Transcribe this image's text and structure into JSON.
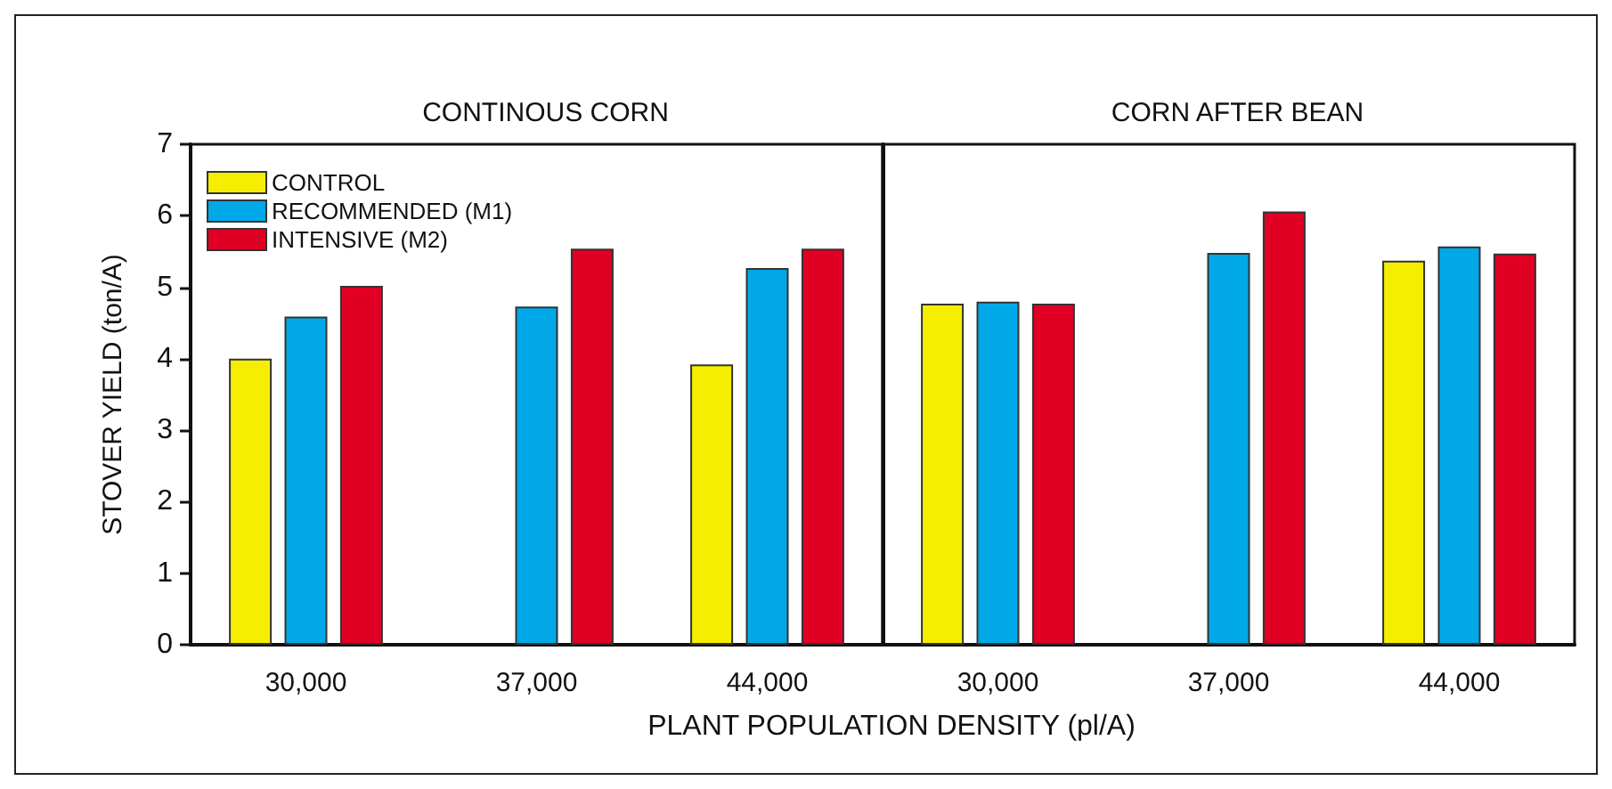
{
  "chart_data": [
    {
      "type": "bar",
      "title": "CONTINOUS CORN",
      "xlabel": "PLANT POPULATION DENSITY (pl/A)",
      "ylabel": "STOVER YIELD (ton/A)",
      "categories": [
        "30,000",
        "37,000",
        "44,000"
      ],
      "series": [
        {
          "name": "CONTROL",
          "color": "#f5ee00",
          "values": [
            4.0,
            null,
            3.92
          ]
        },
        {
          "name": "RECOMMENDED (M1)",
          "color": "#00a8e8",
          "values": [
            4.59,
            4.73,
            5.27
          ]
        },
        {
          "name": "INTENSIVE (M2)",
          "color": "#e00024",
          "values": [
            5.02,
            5.54,
            5.54
          ]
        }
      ],
      "ylim": [
        0,
        7
      ],
      "yticks": [
        0,
        1,
        2,
        3,
        4,
        5,
        6,
        7
      ],
      "grid": false,
      "legend": "top left"
    },
    {
      "type": "bar",
      "title": "CORN AFTER BEAN",
      "categories": [
        "30,000",
        "37,000",
        "44,000"
      ],
      "series": [
        {
          "color": "#f5ee00",
          "values": [
            4.77,
            null,
            5.37
          ]
        },
        {
          "color": "#00a8e8",
          "values": [
            4.8,
            5.48,
            5.57
          ]
        },
        {
          "color": "#e00024",
          "values": [
            4.77,
            6.06,
            5.47
          ]
        }
      ],
      "ylim": [
        0,
        7
      ],
      "yticks": [
        0,
        1,
        2,
        3,
        4,
        5,
        6,
        7
      ],
      "grid": false,
      "tick_labels": "x"
    }
  ]
}
